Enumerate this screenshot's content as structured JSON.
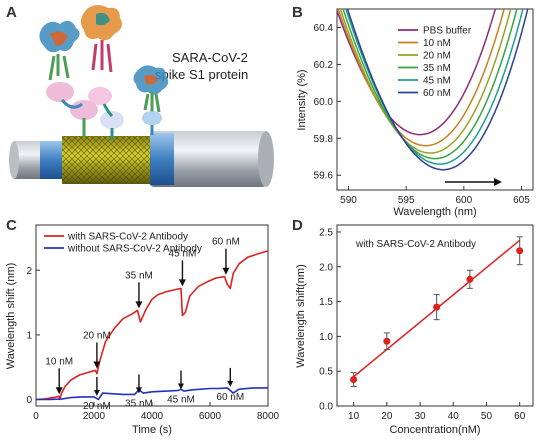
{
  "panels": {
    "A": {
      "letter": "A",
      "title_line1": "SARA-CoV-2",
      "title_line2": "spike S1 protein",
      "colors": {
        "fiber": "#9aa1a8",
        "coating": "#c9c31e",
        "protein": "#3a8bbd"
      }
    },
    "B": {
      "letter": "B"
    },
    "C": {
      "letter": "C"
    },
    "D": {
      "letter": "D"
    }
  },
  "chart_data": [
    {
      "id": "B",
      "type": "line",
      "xlabel": "Wavelength (nm)",
      "ylabel": "Intensity (%)",
      "xlim": [
        589,
        606
      ],
      "ylim": [
        59.52,
        60.5
      ],
      "xticks": [
        590,
        595,
        600,
        605
      ],
      "yticks": [
        59.6,
        59.8,
        60.0,
        60.2,
        60.4
      ],
      "legend_position": "top-right",
      "series": [
        {
          "name": "PBS buffer",
          "color": "#8e2a7c",
          "min_x": 596.2,
          "min_y": 59.82
        },
        {
          "name": "10 nM",
          "color": "#c9801e",
          "min_x": 596.7,
          "min_y": 59.76
        },
        {
          "name": "20 nM",
          "color": "#9aa12a",
          "min_x": 597.1,
          "min_y": 59.72
        },
        {
          "name": "35 nM",
          "color": "#3aa43f",
          "min_x": 597.5,
          "min_y": 59.69
        },
        {
          "name": "45 nM",
          "color": "#1f9e8c",
          "min_x": 597.9,
          "min_y": 59.66
        },
        {
          "name": "60 nM",
          "color": "#2d3f97",
          "min_x": 598.2,
          "min_y": 59.63
        }
      ],
      "annotation": "arrow pointing right (red shift)"
    },
    {
      "id": "C",
      "type": "line",
      "xlabel": "Time (s)",
      "ylabel": "Wavelength shift (nm)",
      "xlim": [
        0,
        8000
      ],
      "ylim": [
        -0.1,
        2.7
      ],
      "xticks": [
        0,
        2000,
        4000,
        6000,
        8000
      ],
      "yticks": [
        0,
        1,
        2
      ],
      "legend_position": "top-left",
      "series": [
        {
          "name": "with SARS-CoV-2 Antibody",
          "color": "#e02020",
          "points": [
            [
              0,
              0
            ],
            [
              300,
              0.01
            ],
            [
              600,
              0.03
            ],
            [
              800,
              0.05
            ],
            [
              820,
              0.0
            ],
            [
              880,
              0.1
            ],
            [
              1000,
              0.2
            ],
            [
              1200,
              0.3
            ],
            [
              1500,
              0.38
            ],
            [
              1800,
              0.42
            ],
            [
              2050,
              0.45
            ],
            [
              2100,
              0.4
            ],
            [
              2200,
              0.6
            ],
            [
              2400,
              0.9
            ],
            [
              2700,
              1.1
            ],
            [
              3000,
              1.25
            ],
            [
              3300,
              1.32
            ],
            [
              3500,
              1.38
            ],
            [
              3600,
              1.2
            ],
            [
              3650,
              1.25
            ],
            [
              3800,
              1.4
            ],
            [
              4000,
              1.55
            ],
            [
              4200,
              1.62
            ],
            [
              4500,
              1.67
            ],
            [
              4800,
              1.7
            ],
            [
              5000,
              1.72
            ],
            [
              5050,
              1.3
            ],
            [
              5150,
              1.35
            ],
            [
              5300,
              1.6
            ],
            [
              5600,
              1.75
            ],
            [
              5900,
              1.82
            ],
            [
              6200,
              1.88
            ],
            [
              6500,
              1.9
            ],
            [
              6600,
              1.78
            ],
            [
              6700,
              1.72
            ],
            [
              6800,
              1.95
            ],
            [
              7000,
              2.1
            ],
            [
              7300,
              2.2
            ],
            [
              7700,
              2.26
            ],
            [
              8000,
              2.3
            ]
          ]
        },
        {
          "name": "without SARS-CoV-2 Antibody",
          "color": "#2233bb",
          "points": [
            [
              0,
              0
            ],
            [
              500,
              0.0
            ],
            [
              900,
              0.01
            ],
            [
              1200,
              0.03
            ],
            [
              1600,
              0.04
            ],
            [
              2000,
              0.04
            ],
            [
              2150,
              0.0
            ],
            [
              2300,
              0.1
            ],
            [
              2600,
              0.09
            ],
            [
              3000,
              0.08
            ],
            [
              3400,
              0.08
            ],
            [
              3550,
              0.15
            ],
            [
              3700,
              0.1
            ],
            [
              4000,
              0.12
            ],
            [
              4500,
              0.13
            ],
            [
              4900,
              0.14
            ],
            [
              5000,
              0.16
            ],
            [
              5100,
              0.13
            ],
            [
              5400,
              0.15
            ],
            [
              6000,
              0.17
            ],
            [
              6300,
              0.17
            ],
            [
              6600,
              0.18
            ],
            [
              6800,
              0.1
            ],
            [
              7000,
              0.16
            ],
            [
              7500,
              0.18
            ],
            [
              8000,
              0.18
            ]
          ]
        }
      ],
      "annotations_with": [
        {
          "label": "10 nM",
          "x": 800,
          "y": 0.05
        },
        {
          "label": "20 nM",
          "x": 2100,
          "y": 0.45
        },
        {
          "label": "35 nM",
          "x": 3550,
          "y": 1.38
        },
        {
          "label": "45 nM",
          "x": 5050,
          "y": 1.72
        },
        {
          "label": "60 nM",
          "x": 6550,
          "y": 1.9
        }
      ],
      "annotations_without": [
        {
          "label": "20 nM",
          "x": 2100,
          "y": 0.04
        },
        {
          "label": "35 nM",
          "x": 3550,
          "y": 0.08
        },
        {
          "label": "45 nM",
          "x": 5000,
          "y": 0.14
        },
        {
          "label": "60 nM",
          "x": 6700,
          "y": 0.18
        }
      ]
    },
    {
      "id": "D",
      "type": "scatter",
      "xlabel": "Concentration(nM)",
      "ylabel": "Wavelength shift(nm)",
      "xlim": [
        5,
        64
      ],
      "ylim": [
        0,
        2.6
      ],
      "xticks": [
        10,
        20,
        30,
        40,
        50,
        60
      ],
      "yticks": [
        0.0,
        0.5,
        1.0,
        1.5,
        2.0,
        2.5
      ],
      "legend_text": "with SARS-CoV-2 Antibody",
      "x": [
        10,
        20,
        35,
        45,
        60
      ],
      "y": [
        0.38,
        0.93,
        1.42,
        1.82,
        2.23
      ],
      "error": [
        0.1,
        0.12,
        0.18,
        0.13,
        0.2
      ],
      "fit": {
        "x": [
          10,
          60
        ],
        "y": [
          0.42,
          2.38
        ]
      },
      "point_color": "#e0201e",
      "fit_color": "#e02020"
    }
  ]
}
